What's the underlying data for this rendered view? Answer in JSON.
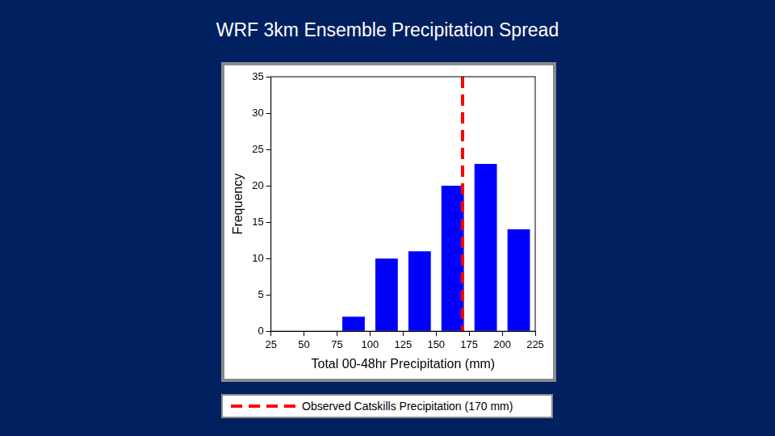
{
  "chart_data": {
    "type": "histogram",
    "title": "WRF 3km Ensemble Precipitation Spread",
    "xlabel": "Total 00-48hr Precipitation (mm)",
    "ylabel": "Frequency",
    "bins": [
      75,
      100,
      125,
      150,
      175,
      200,
      225
    ],
    "values": [
      2,
      10,
      11,
      20,
      23,
      14
    ],
    "color": "#0000ff",
    "xlim": [
      25,
      225
    ],
    "xticks": [
      25,
      50,
      75,
      100,
      125,
      150,
      175,
      200,
      225
    ],
    "ylim": [
      0,
      35
    ],
    "yticks": [
      0,
      5,
      10,
      15,
      20,
      25,
      30,
      35
    ],
    "grid": false,
    "annotations": [
      {
        "type": "vline",
        "x": 170,
        "label": "Observed Catskills Precipitation (170 mm)",
        "color": "#ff0000",
        "line_style": "dashed"
      }
    ]
  }
}
